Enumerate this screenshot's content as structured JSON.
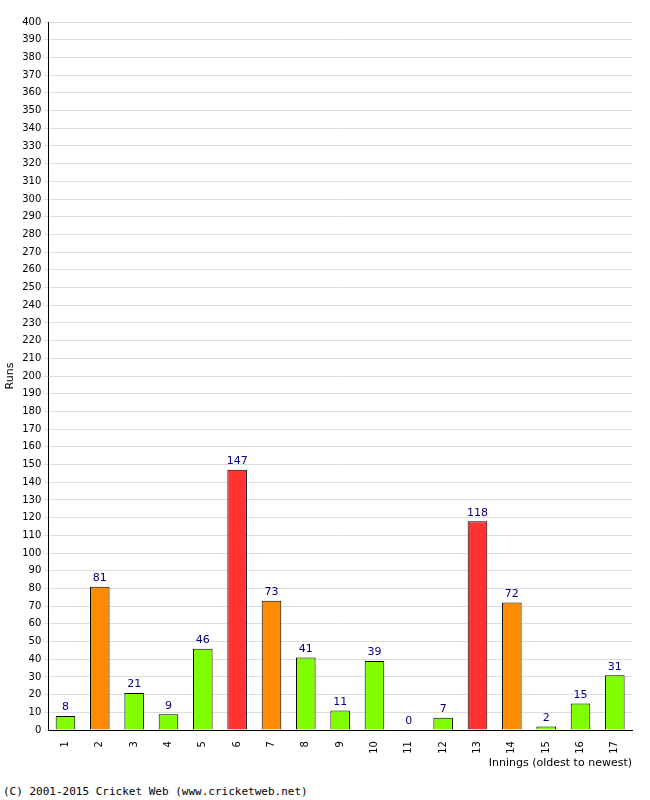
{
  "chart_data": {
    "type": "bar",
    "categories": [
      "1",
      "2",
      "3",
      "4",
      "5",
      "6",
      "7",
      "8",
      "9",
      "10",
      "11",
      "12",
      "13",
      "14",
      "15",
      "16",
      "17"
    ],
    "values": [
      8,
      81,
      21,
      9,
      46,
      147,
      73,
      41,
      11,
      39,
      0,
      7,
      118,
      72,
      2,
      15,
      31
    ],
    "colors": [
      "#80ff00",
      "#ff8c00",
      "#80ff00",
      "#80ff00",
      "#80ff00",
      "#ff3333",
      "#ff8c00",
      "#80ff00",
      "#80ff00",
      "#80ff00",
      "#80ff00",
      "#80ff00",
      "#ff3333",
      "#ff8c00",
      "#80ff00",
      "#80ff00",
      "#80ff00"
    ],
    "xlabel": "Innings (oldest to newest)",
    "ylabel": "Runs",
    "annotations": [
      "(C) 2001-2015 Cricket Web (www.cricketweb.net)"
    ],
    "ylim": [
      0,
      400
    ],
    "yticks": [
      0,
      10,
      20,
      30,
      40,
      50,
      60,
      70,
      80,
      90,
      100,
      110,
      120,
      130,
      140,
      150,
      160,
      170,
      180,
      190,
      200,
      210,
      220,
      230,
      240,
      250,
      260,
      270,
      280,
      290,
      300,
      310,
      320,
      330,
      340,
      350,
      360,
      370,
      380,
      390,
      400
    ],
    "grid": true,
    "data_labels": true
  }
}
